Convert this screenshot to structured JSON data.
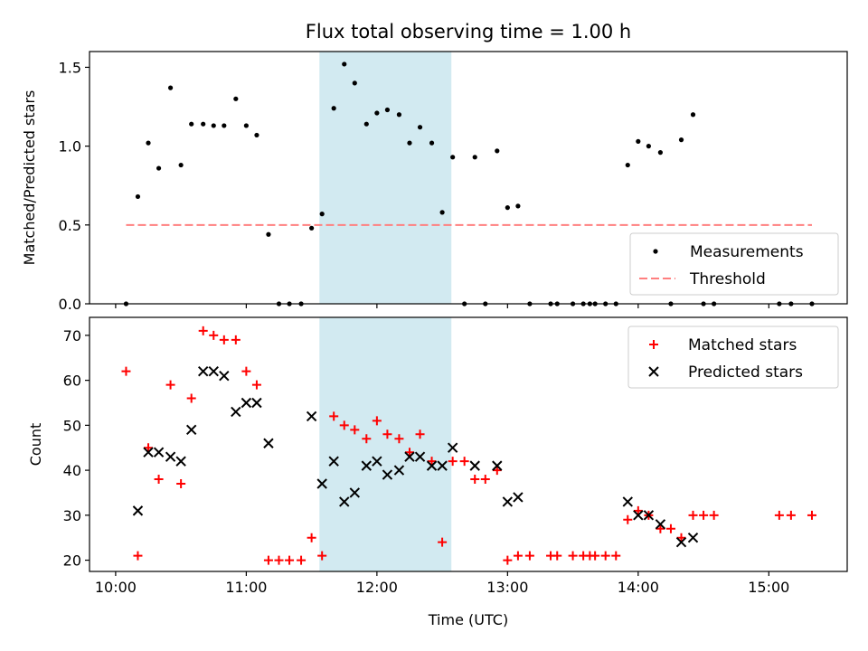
{
  "chart_data": {
    "title": "Flux total observing time = 1.00 h",
    "xlabel": "Time (UTC)",
    "x_unit": "hours UTC",
    "xlim": [
      9.8,
      15.6
    ],
    "x_ticks": [
      10,
      11,
      12,
      13,
      14,
      15
    ],
    "x_tick_labels": [
      "10:00",
      "11:00",
      "12:00",
      "13:00",
      "14:00",
      "15:00"
    ],
    "highlight_span": {
      "x": [
        11.56,
        12.57
      ],
      "color": "#add8e6"
    },
    "panels": [
      {
        "type": "scatter",
        "ylabel": "Matched/Predicted stars",
        "ylim": [
          0,
          1.6
        ],
        "y_ticks": [
          0,
          0.5,
          1.0,
          1.5
        ],
        "y_tick_labels": [
          "0.0",
          "0.5",
          "1.0",
          "1.5"
        ],
        "legend_position": "lower-right",
        "series": [
          {
            "name": "Measurements",
            "marker": "dot",
            "color": "#000000",
            "x": [
              10.08,
              10.17,
              10.25,
              10.33,
              10.42,
              10.5,
              10.58,
              10.67,
              10.75,
              10.83,
              10.92,
              11.0,
              11.08,
              11.17,
              11.25,
              11.33,
              11.42,
              11.5,
              11.58,
              11.67,
              11.75,
              11.83,
              11.92,
              12.0,
              12.08,
              12.17,
              12.25,
              12.33,
              12.42,
              12.5,
              12.58,
              12.67,
              12.75,
              12.83,
              12.92,
              13.0,
              13.08,
              13.17,
              13.33,
              13.38,
              13.5,
              13.58,
              13.63,
              13.67,
              13.75,
              13.83,
              13.92,
              14.0,
              14.08,
              14.17,
              14.25,
              14.33,
              14.42,
              14.5,
              14.58,
              15.08,
              15.17,
              15.33
            ],
            "y": [
              0.0,
              0.68,
              1.02,
              0.86,
              1.37,
              0.88,
              1.14,
              1.14,
              1.13,
              1.13,
              1.3,
              1.13,
              1.07,
              0.44,
              0.0,
              0.0,
              0.0,
              0.48,
              0.57,
              1.24,
              1.52,
              1.4,
              1.14,
              1.21,
              1.23,
              1.2,
              1.02,
              1.12,
              1.02,
              0.58,
              0.93,
              0.0,
              0.93,
              0.0,
              0.97,
              0.61,
              0.62,
              0.0,
              0.0,
              0.0,
              0.0,
              0.0,
              0.0,
              0.0,
              0.0,
              0.0,
              0.88,
              1.03,
              1.0,
              0.96,
              0.0,
              1.04,
              1.2,
              0.0,
              0.0,
              0.0,
              0.0,
              0.0
            ]
          },
          {
            "name": "Threshold",
            "type": "line",
            "style": "dashed",
            "color": "#ff7f7f",
            "x": [
              10.08,
              15.33
            ],
            "y": [
              0.5,
              0.5
            ]
          }
        ]
      },
      {
        "type": "scatter",
        "ylabel": "Count",
        "ylim": [
          17.5,
          74
        ],
        "y_ticks": [
          20,
          30,
          40,
          50,
          60,
          70
        ],
        "y_tick_labels": [
          "20",
          "30",
          "40",
          "50",
          "60",
          "70"
        ],
        "legend_position": "upper-right",
        "series": [
          {
            "name": "Matched stars",
            "marker": "plus",
            "color": "#ff0000",
            "x": [
              10.08,
              10.17,
              10.25,
              10.33,
              10.42,
              10.5,
              10.58,
              10.67,
              10.75,
              10.83,
              10.92,
              11.0,
              11.08,
              11.17,
              11.25,
              11.33,
              11.42,
              11.5,
              11.58,
              11.67,
              11.75,
              11.83,
              11.92,
              12.0,
              12.08,
              12.17,
              12.25,
              12.33,
              12.42,
              12.5,
              12.58,
              12.67,
              12.75,
              12.83,
              12.92,
              13.0,
              13.08,
              13.17,
              13.33,
              13.38,
              13.5,
              13.58,
              13.63,
              13.67,
              13.75,
              13.83,
              13.92,
              14.0,
              14.08,
              14.17,
              14.25,
              14.33,
              14.42,
              14.5,
              14.58,
              15.08,
              15.17,
              15.33
            ],
            "y": [
              62,
              21,
              45,
              38,
              59,
              37,
              56,
              71,
              70,
              69,
              69,
              62,
              59,
              20,
              20,
              20,
              20,
              25,
              21,
              52,
              50,
              49,
              47,
              51,
              48,
              47,
              44,
              48,
              42,
              24,
              42,
              42,
              38,
              38,
              40,
              20,
              21,
              21,
              21,
              21,
              21,
              21,
              21,
              21,
              21,
              21,
              29,
              31,
              30,
              27,
              27,
              25,
              30,
              30,
              30,
              30,
              30,
              30
            ]
          },
          {
            "name": "Predicted stars",
            "marker": "x",
            "color": "#000000",
            "x": [
              10.17,
              10.25,
              10.33,
              10.42,
              10.5,
              10.58,
              10.67,
              10.75,
              10.83,
              10.92,
              11.0,
              11.08,
              11.17,
              11.5,
              11.58,
              11.67,
              11.75,
              11.83,
              11.92,
              12.0,
              12.08,
              12.17,
              12.25,
              12.33,
              12.42,
              12.5,
              12.58,
              12.75,
              12.92,
              13.0,
              13.08,
              13.92,
              14.0,
              14.08,
              14.17,
              14.33,
              14.42
            ],
            "y": [
              31,
              44,
              44,
              43,
              42,
              49,
              62,
              62,
              61,
              53,
              55,
              55,
              46,
              52,
              37,
              42,
              33,
              35,
              41,
              42,
              39,
              40,
              43,
              43,
              41,
              41,
              45,
              41,
              41,
              33,
              34,
              33,
              30,
              30,
              28,
              24,
              25
            ]
          }
        ]
      }
    ]
  }
}
